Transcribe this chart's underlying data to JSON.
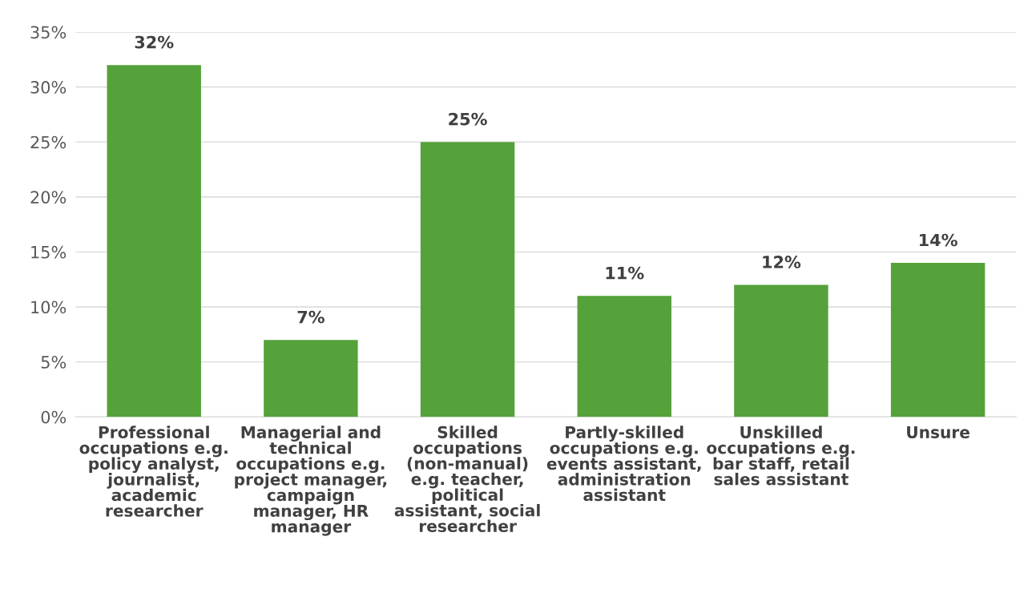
{
  "chart_data": {
    "type": "bar",
    "categories": [
      "Professional\noccupations e.g.\npolicy analyst,\njournalist,\nacademic\nresearcher",
      "Managerial and\ntechnical\noccupations e.g.\nproject manager,\ncampaign\nmanager, HR\nmanager",
      "Skilled\noccupations\n(non-manual)\ne.g. teacher,\npolitical\nassistant, social\nresearcher",
      "Partly-skilled\noccupations e.g.\nevents assistant,\nadministration\nassistant",
      "Unskilled\noccupations e.g.\nbar staff, retail\nsales assistant",
      "Unsure"
    ],
    "values": [
      32,
      7,
      25,
      11,
      12,
      14
    ],
    "value_labels": [
      "32%",
      "7%",
      "25%",
      "11%",
      "12%",
      "14%"
    ],
    "color": "#55a13a",
    "ylim": [
      0,
      35
    ],
    "yticks": [
      {
        "value": 0,
        "label": "0%"
      },
      {
        "value": 5,
        "label": "5%"
      },
      {
        "value": 10,
        "label": "10%"
      },
      {
        "value": 15,
        "label": "15%"
      },
      {
        "value": 20,
        "label": "20%"
      },
      {
        "value": 25,
        "label": "25%"
      },
      {
        "value": 30,
        "label": "30%"
      },
      {
        "value": 35,
        "label": "35%"
      }
    ],
    "grid": "y",
    "legend": false
  }
}
